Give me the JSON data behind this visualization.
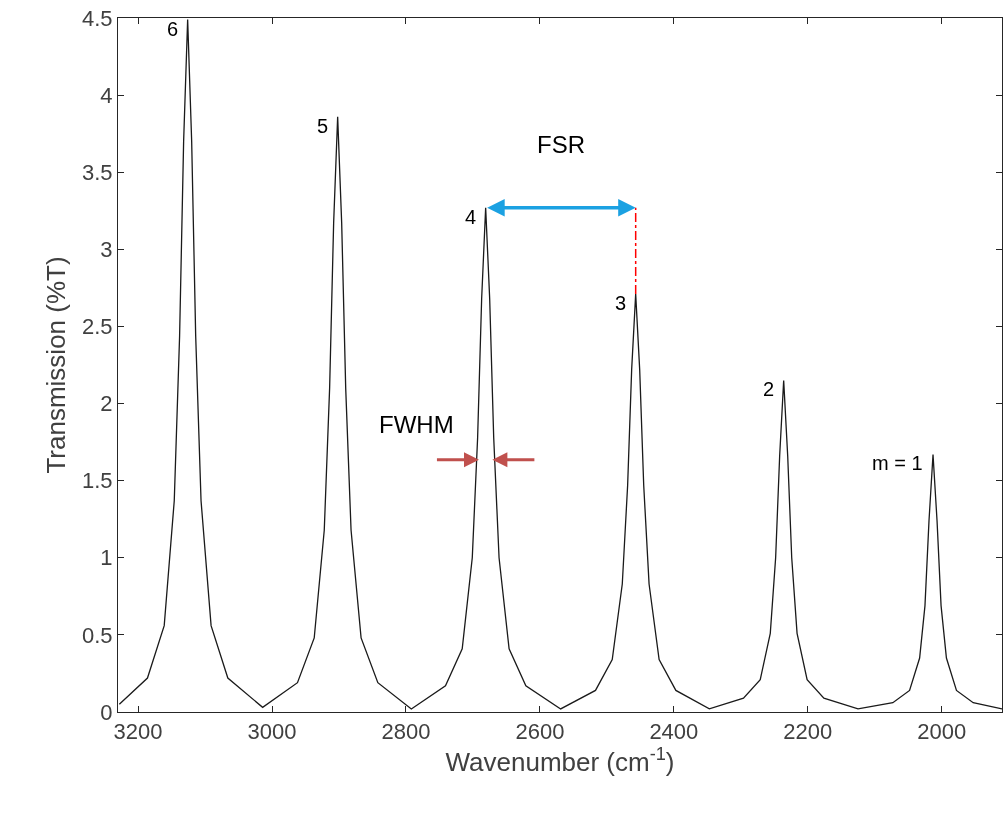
{
  "chart_data": {
    "type": "line",
    "xlabel": "Wavenumber (cm$^{-1}$)",
    "ylabel": "Transmission (%T)",
    "x": [
      3228,
      3186,
      3161,
      3146,
      3138,
      3132,
      3126,
      3120,
      3114,
      3106,
      3091,
      3066,
      3014,
      2962,
      2937,
      2922,
      2914,
      2908,
      2902,
      2896,
      2890,
      2882,
      2867,
      2842,
      2792,
      2741,
      2716,
      2701,
      2693,
      2687,
      2681,
      2675,
      2669,
      2661,
      2646,
      2621,
      2569,
      2517,
      2492,
      2477,
      2469,
      2463,
      2457,
      2451,
      2445,
      2437,
      2422,
      2397,
      2347,
      2296,
      2271,
      2256,
      2248,
      2242,
      2236,
      2230,
      2224,
      2216,
      2201,
      2176,
      2125,
      2073,
      2048,
      2033,
      2025,
      2019,
      2013,
      2007,
      2001,
      1993,
      1978,
      1953,
      1910
    ],
    "series": [
      {
        "color": "#1a1a1a",
        "values": [
          0.05,
          0.22,
          0.56,
          1.37,
          2.44,
          3.7,
          4.49,
          3.7,
          2.44,
          1.37,
          0.56,
          0.22,
          0.03,
          0.19,
          0.48,
          1.18,
          2.1,
          3.17,
          3.86,
          3.17,
          2.1,
          1.18,
          0.48,
          0.19,
          0.02,
          0.17,
          0.41,
          1.0,
          1.78,
          2.68,
          3.27,
          2.68,
          1.78,
          1.0,
          0.41,
          0.17,
          0.02,
          0.14,
          0.34,
          0.83,
          1.47,
          2.22,
          2.71,
          2.22,
          1.47,
          0.83,
          0.34,
          0.14,
          0.02,
          0.09,
          0.21,
          0.51,
          1.0,
          1.66,
          2.15,
          1.66,
          1.0,
          0.51,
          0.21,
          0.09,
          0.02,
          0.06,
          0.14,
          0.35,
          0.69,
          1.24,
          1.67,
          1.24,
          0.69,
          0.35,
          0.14,
          0.06,
          0.02
        ]
      }
    ],
    "xlim": [
      3230,
      1910
    ],
    "ylim": [
      0,
      4.5
    ],
    "xticks": [
      3200,
      3000,
      2800,
      2600,
      2400,
      2200,
      2000
    ],
    "yticks": [
      0,
      0.5,
      1,
      1.5,
      2,
      2.5,
      3,
      3.5,
      4,
      4.5
    ],
    "marker": "none",
    "line_style": "solid",
    "annotations": [
      {
        "text": "6",
        "x": 3126,
        "y": 4.49
      },
      {
        "text": "5",
        "x": 2902,
        "y": 3.86
      },
      {
        "text": "4",
        "x": 2681,
        "y": 3.27
      },
      {
        "text": "3",
        "x": 2457,
        "y": 2.71
      },
      {
        "text": "2",
        "x": 2236,
        "y": 2.15
      },
      {
        "text": "m = 1",
        "x": 2013,
        "y": 1.67
      },
      "FSR",
      "FWHM"
    ]
  }
}
